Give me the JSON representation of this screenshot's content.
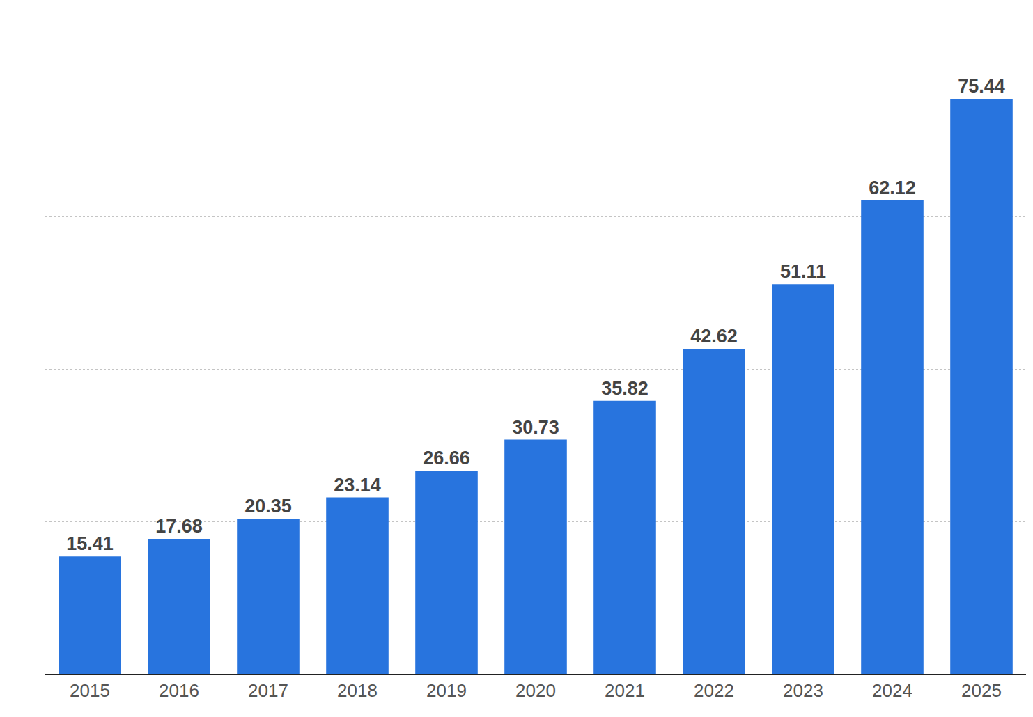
{
  "chart_data": {
    "type": "bar",
    "categories": [
      "2015",
      "2016",
      "2017",
      "2018",
      "2019",
      "2020",
      "2021",
      "2022",
      "2023",
      "2024",
      "2025"
    ],
    "values": [
      15.41,
      17.68,
      20.35,
      23.14,
      26.66,
      30.73,
      35.82,
      42.62,
      51.11,
      62.12,
      75.44
    ],
    "color": "#2874de",
    "ylim": [
      0,
      80
    ],
    "yticks": [
      0,
      20,
      40,
      60,
      80
    ],
    "grid": true,
    "data_labels": true,
    "tick_labels": "x"
  }
}
